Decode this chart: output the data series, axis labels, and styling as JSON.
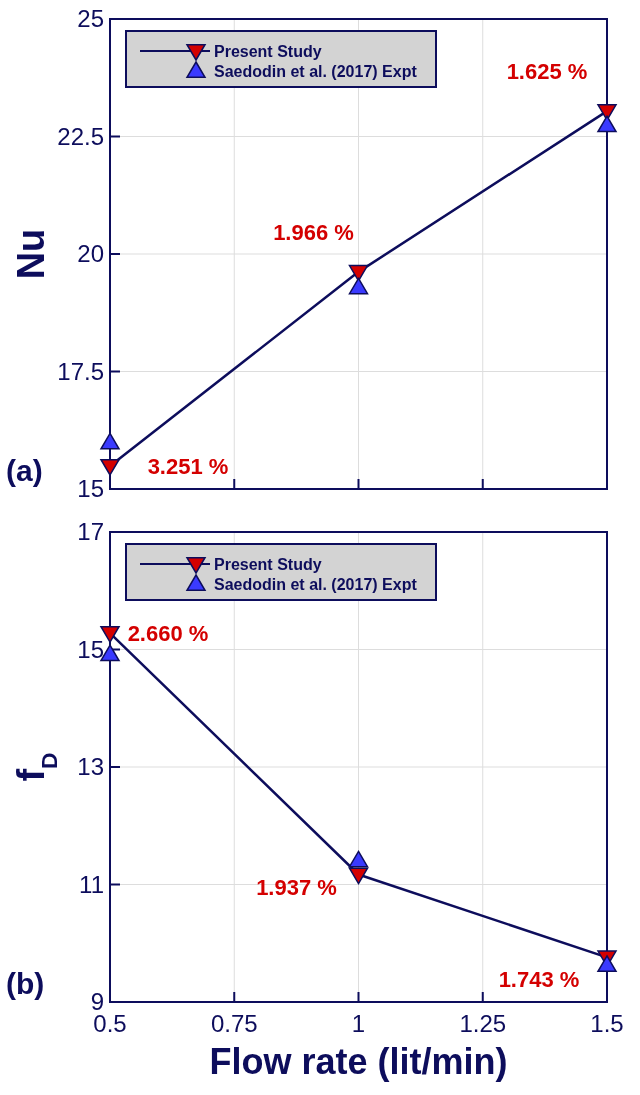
{
  "chart_data": [
    {
      "type": "line",
      "ylabel": "Nu",
      "x": [
        0.5,
        1,
        1.5
      ],
      "xlim": [
        0.5,
        1.5
      ],
      "xticks": [
        0.5,
        0.75,
        1,
        1.25,
        1.5
      ],
      "ylim": [
        15,
        25
      ],
      "yticks": [
        15,
        17.5,
        20,
        22.5,
        25
      ],
      "grid": true,
      "legend": "top left",
      "tick_labels": "y",
      "series": [
        {
          "name": "Present Study",
          "type": "line",
          "color": "#0d0d5c",
          "colors": [
            "#d40000",
            "#d40000",
            "#d40000"
          ],
          "marker": "triangle-down",
          "values": [
            15.49,
            19.62,
            23.04
          ]
        },
        {
          "name": "Saedodin et al. (2017) Expt",
          "type": "scatter",
          "color": "#3a3aff",
          "marker": "triangle",
          "values": [
            15.99,
            19.29,
            22.74
          ]
        }
      ],
      "annotations": [
        "(a)",
        {
          "text": "3.251 %",
          "x": 0.5,
          "y": 15.49
        },
        {
          "text": "1.966 %",
          "x": 1,
          "y": 19.62
        },
        {
          "text": "1.625 %",
          "x": 1.5,
          "y": 23.04
        }
      ]
    },
    {
      "type": "line",
      "xlabel": "Flow rate (lit/min)",
      "ylabel": "f$_{D}$",
      "x": [
        0.5,
        1,
        1.5
      ],
      "xlim": [
        0.5,
        1.5
      ],
      "xticks": [
        0.5,
        0.75,
        1,
        1.25,
        1.5
      ],
      "ylim": [
        9,
        17
      ],
      "yticks": [
        9,
        11,
        13,
        15,
        17
      ],
      "grid": true,
      "legend": "top left",
      "series": [
        {
          "name": "Present Study",
          "type": "line",
          "color": "#0d0d5c",
          "colors": [
            "#d40000",
            "#d40000",
            "#d40000"
          ],
          "marker": "triangle-down",
          "values": [
            15.28,
            11.17,
            9.76
          ]
        },
        {
          "name": "Saedodin et al. (2017) Expt",
          "type": "scatter",
          "color": "#3a3aff",
          "marker": "triangle",
          "values": [
            14.92,
            11.41,
            9.63
          ]
        }
      ],
      "annotations": [
        "(b)",
        {
          "text": "2.660 %",
          "x": 0.5,
          "y": 15.28
        },
        {
          "text": "1.937 %",
          "x": 1,
          "y": 11.17
        },
        {
          "text": "1.743 %",
          "x": 1.5,
          "y": 9.76
        }
      ]
    }
  ]
}
